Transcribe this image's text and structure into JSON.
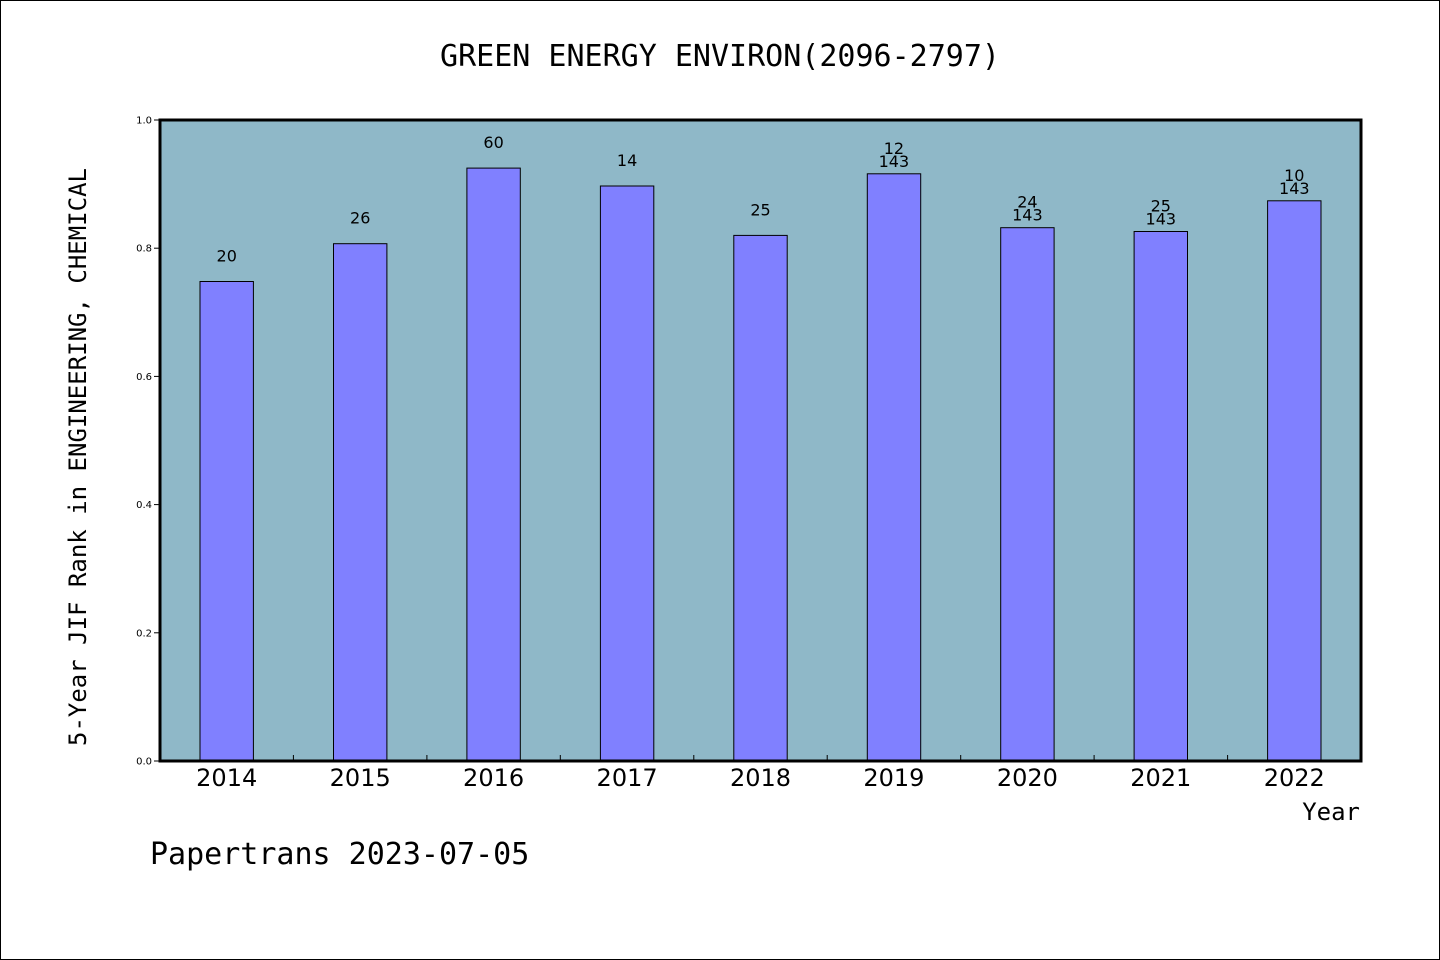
{
  "chart_data": {
    "type": "bar",
    "title": "GREEN ENERGY ENVIRON(2096-2797)",
    "xlabel": "Year",
    "ylabel": "5-Year JIF Rank in ENGINEERING, CHEMICAL",
    "ylim": [
      0,
      1.0
    ],
    "yticks": [
      "0.0",
      "0.2",
      "0.4",
      "0.6",
      "0.8",
      "1.0"
    ],
    "categories": [
      "2014",
      "2015",
      "2016",
      "2017",
      "2018",
      "2019",
      "2020",
      "2021",
      "2022"
    ],
    "values": [
      0.748,
      0.807,
      0.925,
      0.897,
      0.82,
      0.916,
      0.832,
      0.826,
      0.874
    ],
    "labels": [
      [
        "20"
      ],
      [
        "26"
      ],
      [
        "60"
      ],
      [
        "14"
      ],
      [
        "25"
      ],
      [
        "12",
        "143"
      ],
      [
        "24",
        "143"
      ],
      [
        "25",
        "143"
      ],
      [
        "10",
        "143"
      ]
    ],
    "grid": false,
    "colors": {
      "plot_background": "#8fb8c8",
      "bar_fill": "#8080ff",
      "bar_stroke": "#000000"
    }
  },
  "footer": "Papertrans 2023-07-05"
}
